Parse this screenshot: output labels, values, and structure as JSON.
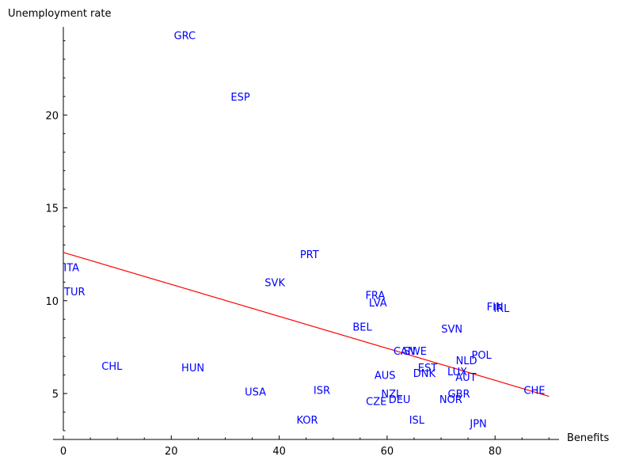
{
  "chart_data": {
    "type": "scatter",
    "xlabel": "Benefits",
    "ylabel": "Unemployment rate",
    "xlim": [
      0,
      92
    ],
    "ylim": [
      3,
      24.5
    ],
    "x_ticks": [
      0,
      20,
      40,
      60,
      80
    ],
    "y_ticks": [
      5,
      10,
      15,
      20
    ],
    "grid": false,
    "colors": {
      "points": "#0000ff",
      "fit_line": "#ff0000",
      "axis": "#000000"
    },
    "points": [
      {
        "label": "GRC",
        "x": 22.5,
        "y": 24.3
      },
      {
        "label": "ESP",
        "x": 32.8,
        "y": 21.0
      },
      {
        "label": "PRT",
        "x": 45.6,
        "y": 12.5
      },
      {
        "label": "SVK",
        "x": 39.2,
        "y": 11.0
      },
      {
        "label": "ITA",
        "x": 1.5,
        "y": 11.8
      },
      {
        "label": "TUR",
        "x": 2.1,
        "y": 10.5
      },
      {
        "label": "FRA",
        "x": 57.8,
        "y": 10.3
      },
      {
        "label": "LVA",
        "x": 58.3,
        "y": 9.9
      },
      {
        "label": "FIN",
        "x": 80.0,
        "y": 9.7
      },
      {
        "label": "IRL",
        "x": 81.2,
        "y": 9.6
      },
      {
        "label": "BEL",
        "x": 55.4,
        "y": 8.6
      },
      {
        "label": "SVN",
        "x": 72.0,
        "y": 8.5
      },
      {
        "label": "CAN",
        "x": 63.2,
        "y": 7.3
      },
      {
        "label": "SWE",
        "x": 65.2,
        "y": 7.3
      },
      {
        "label": "POL",
        "x": 77.5,
        "y": 7.1
      },
      {
        "label": "NLD",
        "x": 74.7,
        "y": 6.8
      },
      {
        "label": "EST",
        "x": 67.5,
        "y": 6.4
      },
      {
        "label": "DNK",
        "x": 66.9,
        "y": 6.1
      },
      {
        "label": "LUX",
        "x": 73.0,
        "y": 6.2
      },
      {
        "label": "AUT",
        "x": 74.6,
        "y": 5.9
      },
      {
        "label": "AUS",
        "x": 59.6,
        "y": 6.0
      },
      {
        "label": "CHL",
        "x": 9.0,
        "y": 6.5
      },
      {
        "label": "HUN",
        "x": 24.0,
        "y": 6.4
      },
      {
        "label": "USA",
        "x": 35.6,
        "y": 5.1
      },
      {
        "label": "ISR",
        "x": 47.9,
        "y": 5.2
      },
      {
        "label": "NZL",
        "x": 60.8,
        "y": 5.0
      },
      {
        "label": "GBR",
        "x": 73.3,
        "y": 5.0
      },
      {
        "label": "CZE",
        "x": 58.0,
        "y": 4.6
      },
      {
        "label": "DEU",
        "x": 62.3,
        "y": 4.7
      },
      {
        "label": "NOR",
        "x": 71.8,
        "y": 4.7
      },
      {
        "label": "CHE",
        "x": 87.3,
        "y": 5.2
      },
      {
        "label": "KOR",
        "x": 45.2,
        "y": 3.6
      },
      {
        "label": "ISL",
        "x": 65.5,
        "y": 3.6
      },
      {
        "label": "JPN",
        "x": 76.9,
        "y": 3.4
      }
    ],
    "fit_line": {
      "x": [
        0,
        90
      ],
      "y": [
        12.6,
        4.85
      ]
    }
  }
}
